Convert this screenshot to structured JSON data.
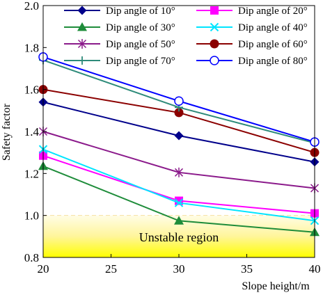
{
  "chart_data": {
    "type": "line",
    "title": "",
    "xlabel": "Slope height/m",
    "ylabel": "Safety factor",
    "xlim": [
      20,
      40
    ],
    "ylim": [
      0.8,
      2.0
    ],
    "x_ticks": [
      "20",
      "25",
      "30",
      "35",
      "40"
    ],
    "y_ticks": [
      "0.8",
      "1.0",
      "1.2",
      "1.4",
      "1.6",
      "1.8",
      "2.0"
    ],
    "grid": false,
    "legend_position": "top-right",
    "x": [
      20,
      30,
      40
    ],
    "series": [
      {
        "name": "Dip angle of 10°",
        "values": [
          1.54,
          1.38,
          1.255
        ],
        "color": "#00008B",
        "marker": "diamond"
      },
      {
        "name": "Dip angle of 20°",
        "values": [
          1.285,
          1.07,
          1.01
        ],
        "color": "#FF00FF",
        "marker": "square"
      },
      {
        "name": "Dip angle of 30°",
        "values": [
          1.235,
          0.975,
          0.92
        ],
        "color": "#1E8C3A",
        "marker": "triangle"
      },
      {
        "name": "Dip angle of 40°",
        "values": [
          1.315,
          1.06,
          0.975
        ],
        "color": "#00E5FF",
        "marker": "x"
      },
      {
        "name": "Dip angle of 50°",
        "values": [
          1.4,
          1.205,
          1.13
        ],
        "color": "#8B1A8B",
        "marker": "asterisk"
      },
      {
        "name": "Dip angle of 60°",
        "values": [
          1.6,
          1.49,
          1.3
        ],
        "color": "#8B0000",
        "marker": "filled-circle"
      },
      {
        "name": "Dip angle of 70°",
        "values": [
          1.74,
          1.515,
          1.345
        ],
        "color": "#2E8B7A",
        "marker": "plus"
      },
      {
        "name": "Dip angle of 80°",
        "values": [
          1.755,
          1.545,
          1.35
        ],
        "color": "#0000FF",
        "marker": "open-circle"
      }
    ],
    "annotations": [
      {
        "text": "Unstable region",
        "y_range": [
          0.8,
          1.0
        ],
        "colors": [
          "#FFF176",
          "#FFFF00"
        ]
      }
    ]
  }
}
